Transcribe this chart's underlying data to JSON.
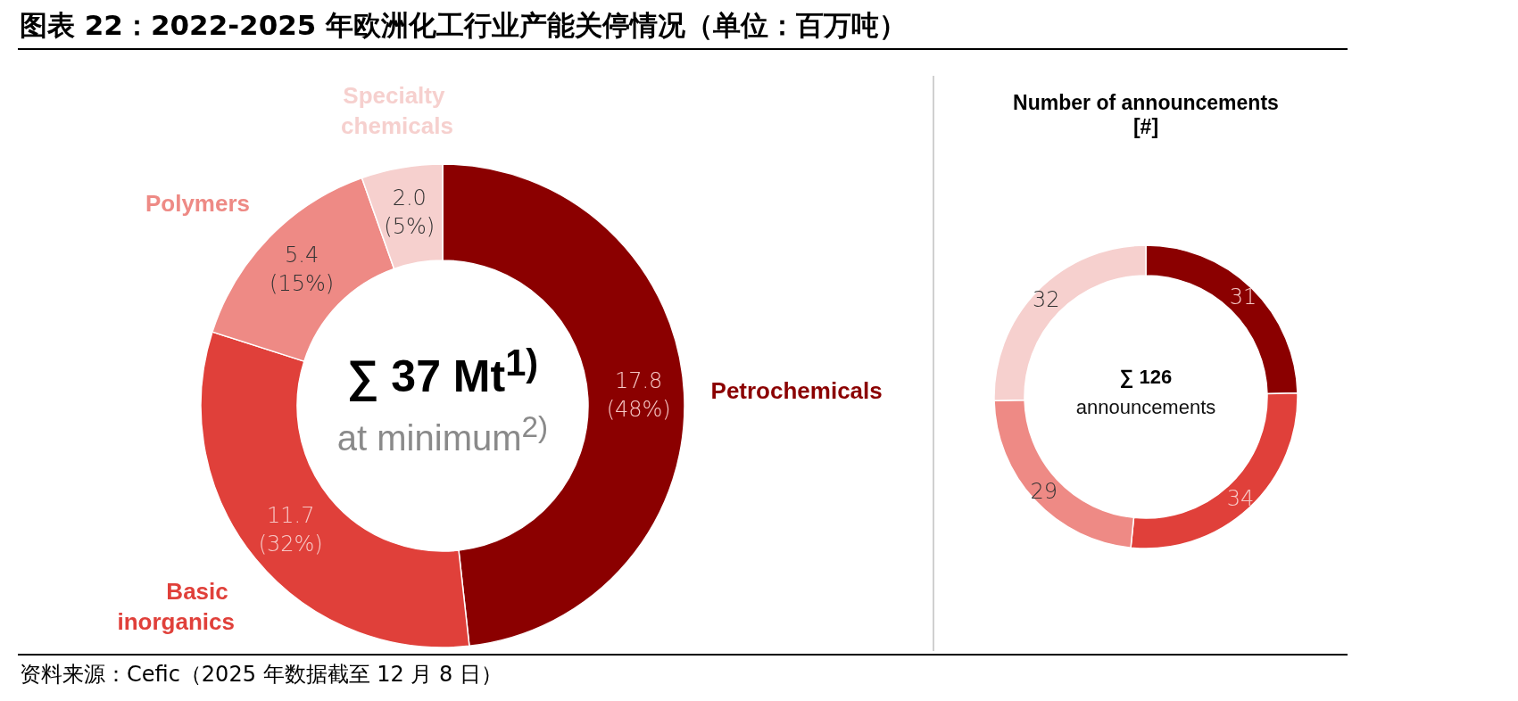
{
  "chart_data": [
    {
      "type": "donut",
      "title": "图表 22：2022-2025 年欧洲化工行业产能关停情况（单位：百万吨）",
      "categories": [
        "Petrochemicals",
        "Basic inorganics",
        "Polymers",
        "Specialty chemicals"
      ],
      "values": [
        17.8,
        11.7,
        5.4,
        2.0
      ],
      "colors": [
        "#8b0000",
        "#e0403a",
        "#ee8a85",
        "#f6d0ce"
      ],
      "value_labels": [
        "17.8\n(48%)",
        "11.7\n(32%)",
        "5.4\n(15%)",
        "2.0\n(5%)"
      ],
      "annotations": [
        "∑ 37 Mt$^{1)}$",
        "at minimum$^{2)}$",
        "资料来源：Cefic（2025 年数据截至 12 月 8 日）"
      ]
    },
    {
      "type": "donut",
      "title": "Number of announcements [#]",
      "categories": [
        null,
        null,
        null,
        null
      ],
      "values": [
        31,
        34,
        29,
        32
      ],
      "colors": [
        "#8b0000",
        "#e0403a",
        "#ee8a85",
        "#f6d0ce"
      ],
      "data_labels": true,
      "annotations": [
        "∑ 126",
        "announcements"
      ]
    }
  ]
}
